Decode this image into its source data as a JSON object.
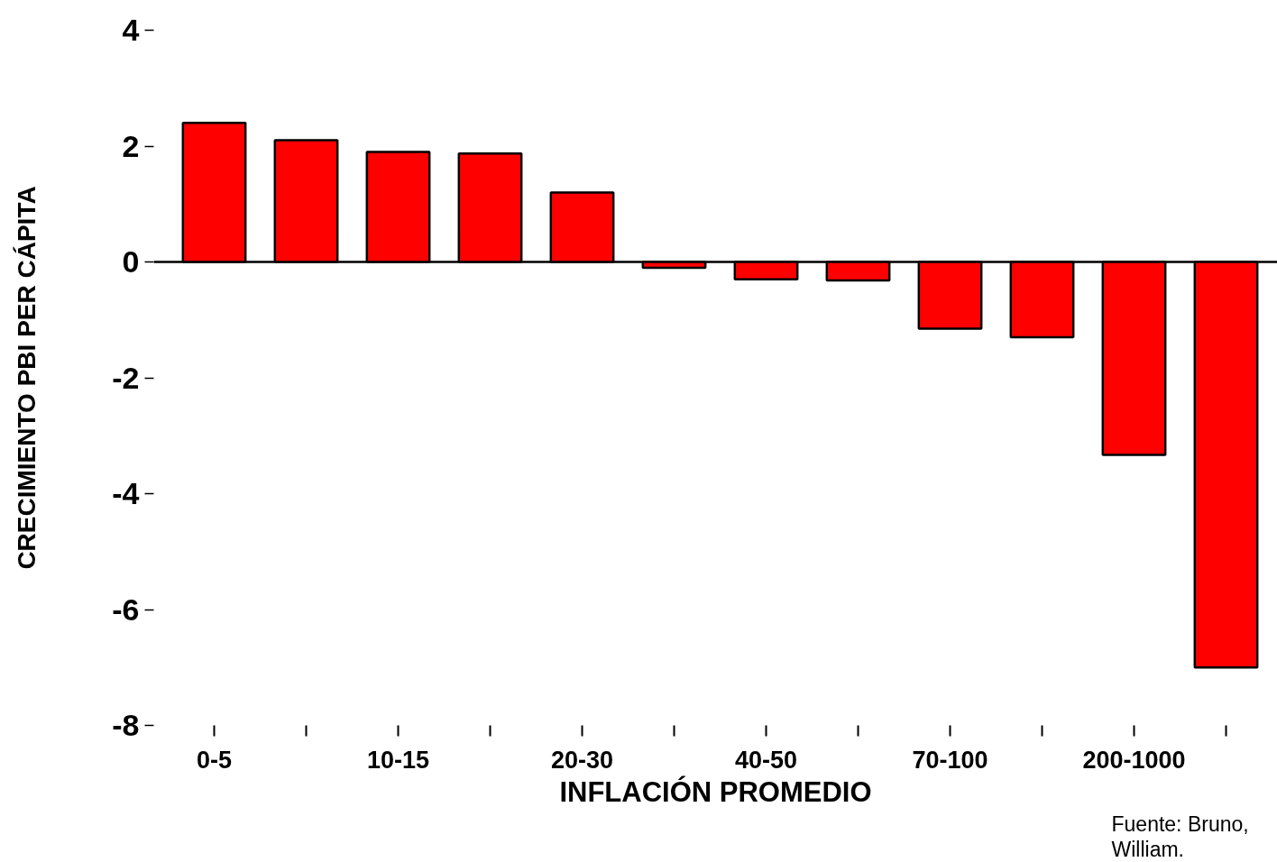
{
  "chart_data": {
    "type": "bar",
    "categories": [
      "0-5",
      null,
      "10-15",
      null,
      "20-30",
      null,
      "40-50",
      null,
      "70-100",
      null,
      "200-1000",
      null
    ],
    "values": [
      2.4,
      2.1,
      1.9,
      1.87,
      1.2,
      -0.1,
      -0.3,
      -0.32,
      -1.15,
      -1.3,
      -3.33,
      -7.0
    ],
    "color": "#ff0000",
    "ylim": [
      -8,
      4
    ],
    "yticks": [
      -8,
      -6,
      -4,
      -2,
      0,
      2,
      4
    ],
    "xlabel": "INFLACIÓN PROMEDIO",
    "ylabel": "CRECIMIENTO PBI PER CÁPITA",
    "annotations": [
      "Fuente: Bruno,\nWilliam."
    ],
    "ref_lines": [
      {
        "axis": "y",
        "value": 0,
        "color": "#000000"
      }
    ],
    "grid": false,
    "legend": false
  }
}
